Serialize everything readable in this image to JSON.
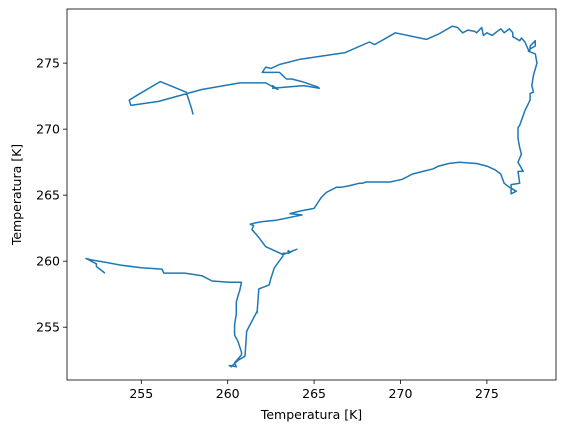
{
  "chart_data": {
    "type": "line",
    "title": "",
    "xlabel": "Temperatura [K]",
    "ylabel": "Temperatura [K]",
    "xlim": [
      250.7,
      279.0
    ],
    "ylim": [
      251.0,
      279.1
    ],
    "xticks": [
      255,
      260,
      265,
      270,
      275
    ],
    "yticks": [
      255,
      260,
      265,
      270,
      275
    ],
    "grid": false,
    "legend": false,
    "line_color": "#1f77b4",
    "series": [
      {
        "x": [
          252.9,
          252.4,
          252.4,
          251.8,
          252.1,
          253.0,
          253.8,
          255.0,
          256.2,
          256.3,
          257.5,
          258.0,
          258.5,
          259.1,
          260.1,
          260.8,
          260.7,
          260.6,
          260.5,
          260.5,
          260.4,
          260.4,
          260.6,
          260.8,
          260.8,
          260.4,
          260.5,
          260.1,
          260.2,
          260.6,
          261.0,
          261.1,
          261.7,
          261.7,
          261.8,
          262.4,
          262.5,
          262.7,
          263.2,
          263.2,
          263.4,
          263.6,
          263.6,
          263.5,
          263.5,
          263.8,
          264.0,
          263.4,
          263.2,
          262.7,
          262.2,
          261.8,
          261.6,
          261.4,
          261.5,
          261.3,
          261.6,
          262.0,
          262.8,
          263.2,
          263.9,
          264.3,
          263.6,
          264.2,
          265.0,
          265.4,
          265.7,
          266.3,
          266.6,
          267.0,
          267.3,
          267.6,
          267.8,
          268.0,
          268.1,
          268.5,
          269.4,
          270.1,
          270.7,
          271.3,
          271.9,
          272.2,
          272.8,
          273.4,
          274.4,
          275.0,
          275.5,
          275.8,
          276.0,
          276.3,
          276.7,
          276.4,
          276.4,
          276.9,
          276.8,
          277.1,
          276.8,
          277.0,
          276.9,
          276.8,
          276.8,
          276.9,
          277.2,
          277.5,
          277.5,
          277.7,
          277.6,
          277.7,
          277.9,
          277.8,
          277.4,
          277.5,
          277.5,
          277.8,
          277.8,
          277.4,
          277.2,
          277.0,
          276.9,
          276.5,
          276.5,
          276.3,
          276.0,
          275.8,
          275.3,
          275.0,
          274.8,
          274.7,
          274.4,
          274.3,
          273.9,
          273.6,
          273.3,
          273.0,
          272.6,
          272.2,
          271.5,
          269.7,
          268.5,
          268.2,
          266.8,
          264.2,
          263.0,
          262.5,
          262.2,
          262.0,
          263.0,
          263.4,
          263.7,
          264.3,
          265.2,
          265.3,
          264.4,
          262.6,
          262.6,
          262.9,
          262.2,
          260.7,
          258.5,
          256.0,
          254.4,
          254.3,
          254.8,
          256.1,
          257.6,
          257.9,
          258.0
        ],
        "y": [
          259.1,
          259.6,
          259.8,
          260.2,
          260.1,
          259.9,
          259.7,
          259.5,
          259.4,
          259.1,
          259.1,
          259.0,
          258.9,
          258.5,
          258.4,
          258.4,
          257.8,
          257.4,
          256.9,
          256.0,
          255.2,
          254.4,
          253.9,
          253.1,
          252.9,
          252.3,
          252.0,
          252.1,
          252.0,
          252.5,
          252.8,
          254.7,
          256.2,
          256.1,
          257.9,
          258.2,
          258.7,
          259.5,
          260.4,
          260.6,
          260.6,
          260.7,
          260.7,
          260.8,
          260.6,
          260.8,
          260.9,
          260.6,
          260.5,
          260.8,
          261.1,
          261.8,
          262.1,
          262.4,
          262.7,
          262.8,
          262.9,
          263.0,
          263.1,
          263.2,
          263.4,
          263.5,
          263.6,
          263.8,
          264.0,
          264.8,
          265.2,
          265.6,
          265.6,
          265.7,
          265.8,
          265.9,
          265.9,
          266.0,
          266.0,
          266.0,
          266.0,
          266.2,
          266.6,
          266.8,
          267.0,
          267.2,
          267.4,
          267.5,
          267.4,
          267.2,
          266.9,
          266.6,
          265.9,
          265.6,
          265.3,
          265.1,
          265.8,
          265.9,
          266.8,
          266.8,
          267.5,
          268.1,
          268.6,
          269.3,
          270.1,
          270.3,
          271.4,
          272.2,
          272.7,
          272.8,
          273.3,
          274.1,
          275.0,
          275.7,
          275.9,
          276.0,
          276.3,
          276.7,
          276.3,
          276.0,
          276.6,
          276.9,
          276.7,
          277.0,
          277.3,
          277.6,
          277.3,
          277.6,
          277.1,
          277.3,
          277.1,
          277.7,
          277.3,
          277.4,
          277.5,
          277.3,
          277.7,
          277.8,
          277.5,
          277.2,
          276.8,
          277.3,
          276.4,
          276.6,
          275.8,
          275.3,
          274.9,
          274.6,
          274.7,
          274.3,
          274.3,
          273.8,
          273.8,
          273.6,
          273.2,
          273.1,
          273.3,
          273.1,
          273.3,
          273.0,
          273.5,
          273.5,
          273.0,
          272.1,
          271.8,
          272.2,
          272.6,
          273.6,
          272.8,
          271.6,
          271.1
        ]
      }
    ]
  }
}
